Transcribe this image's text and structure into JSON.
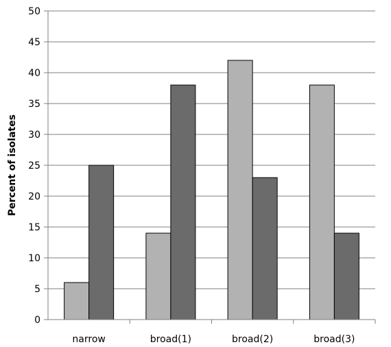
{
  "chart_data": {
    "type": "bar",
    "title": "",
    "xlabel": "",
    "ylabel": "Percent of isolates",
    "ylim": [
      0,
      50
    ],
    "y_ticks": [
      0,
      5,
      10,
      15,
      20,
      25,
      30,
      35,
      40,
      45,
      50
    ],
    "grid": true,
    "legend": "none",
    "categories": [
      "narrow",
      "broad(1)",
      "broad(2)",
      "broad(3)"
    ],
    "series": [
      {
        "values": [
          6,
          14,
          42,
          38
        ],
        "color": "#b2b2b2"
      },
      {
        "values": [
          25,
          38,
          23,
          14
        ],
        "color": "#6b6b6b"
      }
    ]
  }
}
